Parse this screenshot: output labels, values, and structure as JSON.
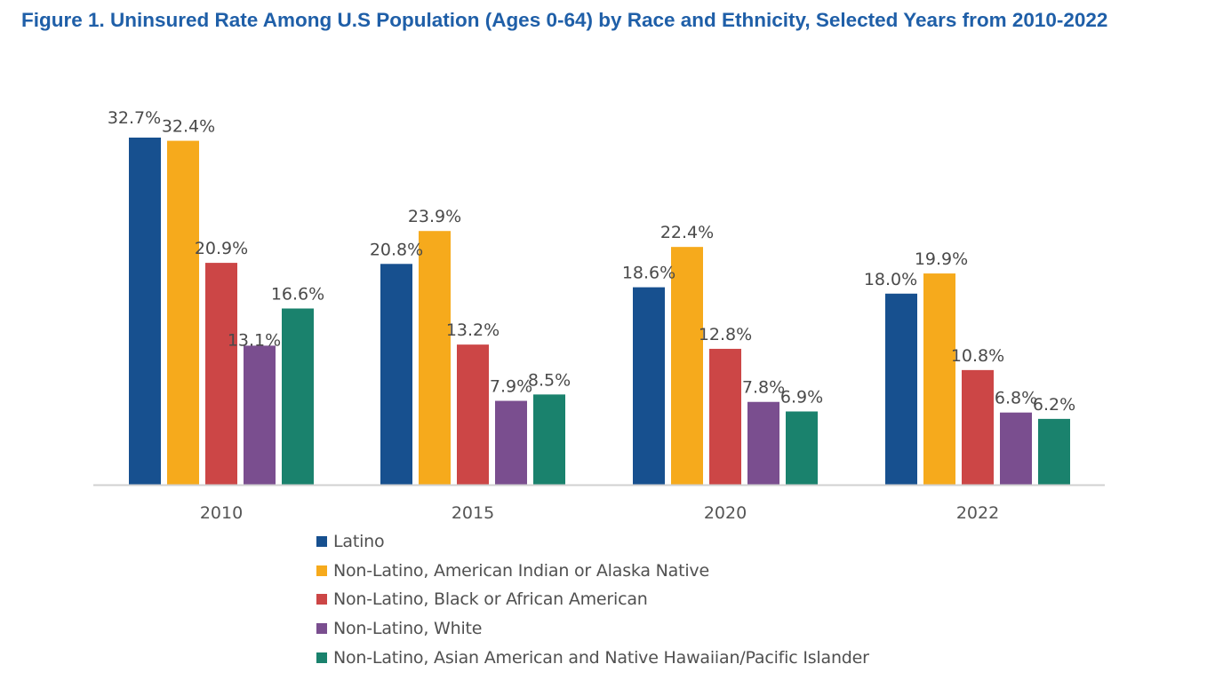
{
  "title": "Figure 1. Uninsured Rate Among U.S Population (Ages 0-64) by Race and Ethnicity, Selected Years from 2010-2022",
  "chart_data": {
    "type": "bar",
    "title": "Figure 1. Uninsured Rate Among U.S Population (Ages 0-64) by Race and Ethnicity, Selected Years from 2010-2022",
    "xlabel": "",
    "ylabel": "",
    "ylim": [
      0,
      35
    ],
    "grid": false,
    "legend_position": "bottom",
    "categories": [
      "2010",
      "2015",
      "2020",
      "2022"
    ],
    "series": [
      {
        "name": "Latino",
        "color": "#17508f",
        "values": [
          32.7,
          20.8,
          18.6,
          18.0
        ],
        "labels": [
          "32.7%",
          "20.8%",
          "18.6%",
          "18.0%"
        ]
      },
      {
        "name": "Non-Latino, American Indian or Alaska Native",
        "color": "#f6aa1c",
        "values": [
          32.4,
          23.9,
          22.4,
          19.9
        ],
        "labels": [
          "32.4%",
          "23.9%",
          "22.4%",
          "19.9%"
        ]
      },
      {
        "name": "Non-Latino, Black or African American",
        "color": "#cc4646",
        "values": [
          20.9,
          13.2,
          12.8,
          10.8
        ],
        "labels": [
          "20.9%",
          "13.2%",
          "12.8%",
          "10.8%"
        ]
      },
      {
        "name": "Non-Latino, White",
        "color": "#7a4e8f",
        "values": [
          13.1,
          7.9,
          7.8,
          6.8
        ],
        "labels": [
          "13.1%",
          "7.9%",
          "7.8%",
          "6.8%"
        ]
      },
      {
        "name": "Non-Latino, Asian American and Native Hawaiian/Pacific Islander",
        "color": "#1a826d",
        "values": [
          16.6,
          8.5,
          6.9,
          6.2
        ],
        "labels": [
          "16.6%",
          "8.5%",
          "6.9%",
          "6.2%"
        ]
      }
    ]
  }
}
